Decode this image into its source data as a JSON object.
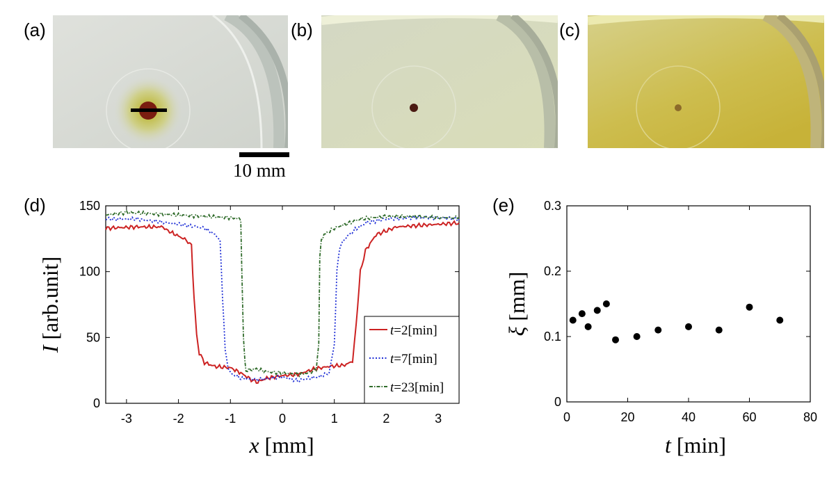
{
  "panels": {
    "a": "(a)",
    "b": "(b)",
    "c": "(c)",
    "d": "(d)",
    "e": "(e)"
  },
  "scalebar": {
    "label": "10 mm"
  },
  "colors": {
    "red": "#cc2222",
    "blue": "#1f2fd6",
    "green": "#2f6b2a",
    "dots": "#000000"
  },
  "chart_data": [
    {
      "id": "d",
      "type": "line",
      "xlabel": "x [mm]",
      "ylabel": "I [arb.unit]",
      "xlim": [
        -3.4,
        3.4
      ],
      "ylim": [
        0,
        150
      ],
      "xticks": [
        -3,
        -2,
        -1,
        0,
        1,
        2,
        3
      ],
      "yticks": [
        0,
        50,
        100,
        150
      ],
      "legend_position": "bottom-right",
      "series": [
        {
          "name": "t=2[min]",
          "t_label": "t",
          "t_value": "=2[min]",
          "color": "red",
          "dash": "solid",
          "x": [
            -3.4,
            -2.8,
            -2.3,
            -2.2,
            -2.0,
            -1.85,
            -1.75,
            -1.7,
            -1.65,
            -1.6,
            -1.5,
            -1.3,
            -1.0,
            -0.8,
            -0.6,
            -0.5,
            -0.3,
            0.0,
            0.3,
            0.6,
            0.9,
            1.2,
            1.35,
            1.42,
            1.5,
            1.6,
            1.8,
            2.2,
            2.6,
            3.0,
            3.4
          ],
          "y": [
            133,
            134,
            134,
            131,
            127,
            124,
            120,
            80,
            52,
            38,
            31,
            28,
            27,
            23,
            18,
            16,
            19,
            21,
            22,
            26,
            28,
            29,
            32,
            60,
            100,
            116,
            128,
            134,
            135,
            136,
            137
          ]
        },
        {
          "name": "t=7[min]",
          "t_label": "t",
          "t_value": "=7[min]",
          "color": "blue",
          "dash": "dotted",
          "x": [
            -3.4,
            -2.8,
            -2.2,
            -1.8,
            -1.5,
            -1.3,
            -1.2,
            -1.15,
            -1.1,
            -1.05,
            -1.0,
            -0.8,
            -0.5,
            0.0,
            0.3,
            0.5,
            0.7,
            0.9,
            1.0,
            1.05,
            1.1,
            1.2,
            1.4,
            1.6,
            2.0,
            2.5,
            3.0,
            3.4
          ],
          "y": [
            140,
            140,
            137,
            135,
            133,
            128,
            124,
            80,
            40,
            28,
            23,
            19,
            18,
            20,
            17,
            19,
            20,
            23,
            45,
            100,
            118,
            125,
            132,
            137,
            140,
            141,
            141,
            140
          ]
        },
        {
          "name": "t=23[min]",
          "t_label": "t",
          "t_value": "=23[min]",
          "color": "green",
          "dash": "dashdot",
          "x": [
            -3.4,
            -3.0,
            -2.5,
            -2.0,
            -1.5,
            -1.0,
            -0.8,
            -0.78,
            -0.75,
            -0.72,
            -0.7,
            -0.5,
            -0.3,
            0.0,
            0.3,
            0.5,
            0.65,
            0.7,
            0.72,
            0.75,
            0.8,
            1.0,
            1.5,
            2.0,
            2.5,
            3.0,
            3.4
          ],
          "y": [
            143,
            145,
            144,
            143,
            142,
            141,
            140,
            100,
            50,
            32,
            25,
            26,
            24,
            23,
            22,
            23,
            26,
            45,
            110,
            124,
            128,
            133,
            140,
            142,
            142,
            141,
            141
          ]
        }
      ]
    },
    {
      "id": "e",
      "type": "scatter",
      "xlabel": "t [min]",
      "ylabel": "ξ [mm]",
      "xlim": [
        0,
        80
      ],
      "ylim": [
        0,
        0.3
      ],
      "xticks": [
        0,
        20,
        40,
        60,
        80
      ],
      "yticks": [
        0,
        0.1,
        0.2,
        0.3
      ],
      "ytick_labels": [
        "0",
        "0.1",
        "0.2",
        "0.3"
      ],
      "x": [
        2,
        5,
        7,
        10,
        13,
        16,
        23,
        30,
        40,
        50,
        60,
        70
      ],
      "y": [
        0.125,
        0.135,
        0.115,
        0.14,
        0.15,
        0.095,
        0.1,
        0.11,
        0.115,
        0.11,
        0.145,
        0.125
      ]
    }
  ]
}
